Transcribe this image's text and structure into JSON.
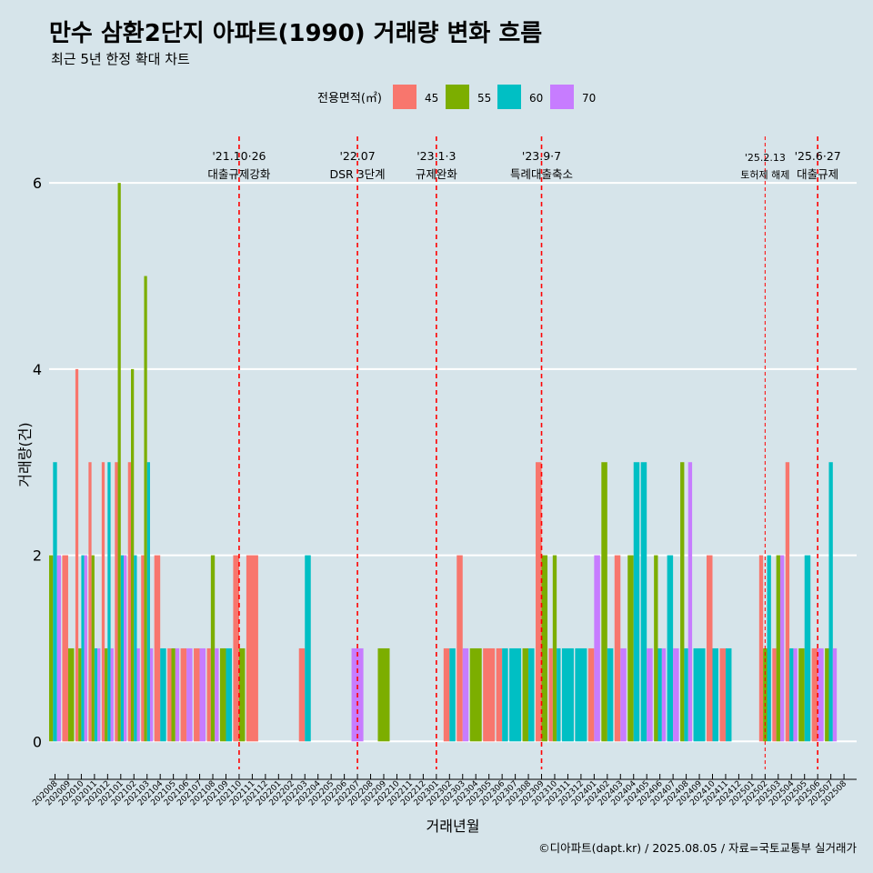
{
  "chart_data": {
    "type": "bar",
    "title": "만수 삼환2단지 아파트(1990) 거래량 변화 흐름",
    "subtitle": "최근 5년 한정 확대 차트",
    "xlabel": "거래년월",
    "ylabel": "거래량(건)",
    "caption": "©디아파트(dapt.kr) / 2025.08.05 / 자료=국토교통부 실거래가",
    "legend_title": "전용면적(㎡)",
    "legend_position": "top",
    "ylim": [
      -0.3,
      6.5
    ],
    "yticks": [
      0,
      2,
      4,
      6
    ],
    "groups": [
      "45",
      "55",
      "60",
      "70"
    ],
    "colors": {
      "45": "#f8766d",
      "55": "#7cae00",
      "60": "#00bfc4",
      "70": "#c77cff"
    },
    "months": [
      "202008",
      "202009",
      "202010",
      "202011",
      "202012",
      "202101",
      "202102",
      "202103",
      "202104",
      "202105",
      "202106",
      "202107",
      "202108",
      "202109",
      "202110",
      "202111",
      "202112",
      "202201",
      "202202",
      "202203",
      "202204",
      "202205",
      "202206",
      "202207",
      "202208",
      "202209",
      "202210",
      "202211",
      "202212",
      "202301",
      "202302",
      "202303",
      "202304",
      "202305",
      "202306",
      "202307",
      "202308",
      "202309",
      "202310",
      "202311",
      "202312",
      "202401",
      "202402",
      "202403",
      "202404",
      "202405",
      "202406",
      "202407",
      "202408",
      "202409",
      "202410",
      "202411",
      "202412",
      "202501",
      "202502",
      "202503",
      "202504",
      "202505",
      "202506",
      "202507",
      "202508"
    ],
    "points": [
      {
        "m": "202008",
        "g": "55",
        "v": 2
      },
      {
        "m": "202008",
        "g": "60",
        "v": 3
      },
      {
        "m": "202008",
        "g": "70",
        "v": 2
      },
      {
        "m": "202009",
        "g": "45",
        "v": 2
      },
      {
        "m": "202009",
        "g": "55",
        "v": 1
      },
      {
        "m": "202010",
        "g": "45",
        "v": 4
      },
      {
        "m": "202010",
        "g": "55",
        "v": 1
      },
      {
        "m": "202010",
        "g": "60",
        "v": 2
      },
      {
        "m": "202010",
        "g": "70",
        "v": 2
      },
      {
        "m": "202011",
        "g": "45",
        "v": 3
      },
      {
        "m": "202011",
        "g": "55",
        "v": 2
      },
      {
        "m": "202011",
        "g": "60",
        "v": 1
      },
      {
        "m": "202011",
        "g": "70",
        "v": 1
      },
      {
        "m": "202012",
        "g": "45",
        "v": 3
      },
      {
        "m": "202012",
        "g": "55",
        "v": 1
      },
      {
        "m": "202012",
        "g": "60",
        "v": 3
      },
      {
        "m": "202012",
        "g": "70",
        "v": 1
      },
      {
        "m": "202101",
        "g": "45",
        "v": 3
      },
      {
        "m": "202101",
        "g": "55",
        "v": 6
      },
      {
        "m": "202101",
        "g": "60",
        "v": 2
      },
      {
        "m": "202101",
        "g": "70",
        "v": 2
      },
      {
        "m": "202102",
        "g": "45",
        "v": 3
      },
      {
        "m": "202102",
        "g": "55",
        "v": 4
      },
      {
        "m": "202102",
        "g": "60",
        "v": 2
      },
      {
        "m": "202102",
        "g": "70",
        "v": 1
      },
      {
        "m": "202103",
        "g": "45",
        "v": 2
      },
      {
        "m": "202103",
        "g": "55",
        "v": 5
      },
      {
        "m": "202103",
        "g": "60",
        "v": 3
      },
      {
        "m": "202103",
        "g": "70",
        "v": 1
      },
      {
        "m": "202104",
        "g": "45",
        "v": 2
      },
      {
        "m": "202104",
        "g": "60",
        "v": 1
      },
      {
        "m": "202105",
        "g": "45",
        "v": 1
      },
      {
        "m": "202105",
        "g": "55",
        "v": 1
      },
      {
        "m": "202105",
        "g": "70",
        "v": 1
      },
      {
        "m": "202106",
        "g": "45",
        "v": 1
      },
      {
        "m": "202106",
        "g": "70",
        "v": 1
      },
      {
        "m": "202107",
        "g": "45",
        "v": 1
      },
      {
        "m": "202107",
        "g": "70",
        "v": 1
      },
      {
        "m": "202108",
        "g": "45",
        "v": 1
      },
      {
        "m": "202108",
        "g": "55",
        "v": 2
      },
      {
        "m": "202108",
        "g": "70",
        "v": 1
      },
      {
        "m": "202109",
        "g": "55",
        "v": 1
      },
      {
        "m": "202109",
        "g": "60",
        "v": 1
      },
      {
        "m": "202110",
        "g": "45",
        "v": 2
      },
      {
        "m": "202110",
        "g": "55",
        "v": 1
      },
      {
        "m": "202111",
        "g": "45",
        "v": 2
      },
      {
        "m": "202203",
        "g": "45",
        "v": 1
      },
      {
        "m": "202203",
        "g": "60",
        "v": 2
      },
      {
        "m": "202207",
        "g": "70",
        "v": 1
      },
      {
        "m": "202209",
        "g": "55",
        "v": 1
      },
      {
        "m": "202302",
        "g": "45",
        "v": 1
      },
      {
        "m": "202302",
        "g": "60",
        "v": 1
      },
      {
        "m": "202303",
        "g": "45",
        "v": 2
      },
      {
        "m": "202303",
        "g": "70",
        "v": 1
      },
      {
        "m": "202304",
        "g": "55",
        "v": 1
      },
      {
        "m": "202305",
        "g": "45",
        "v": 1
      },
      {
        "m": "202306",
        "g": "45",
        "v": 1
      },
      {
        "m": "202306",
        "g": "60",
        "v": 1
      },
      {
        "m": "202307",
        "g": "60",
        "v": 1
      },
      {
        "m": "202308",
        "g": "55",
        "v": 1
      },
      {
        "m": "202308",
        "g": "60",
        "v": 1
      },
      {
        "m": "202309",
        "g": "45",
        "v": 3
      },
      {
        "m": "202309",
        "g": "55",
        "v": 2
      },
      {
        "m": "202310",
        "g": "45",
        "v": 1
      },
      {
        "m": "202310",
        "g": "55",
        "v": 2
      },
      {
        "m": "202310",
        "g": "60",
        "v": 1
      },
      {
        "m": "202311",
        "g": "60",
        "v": 1
      },
      {
        "m": "202312",
        "g": "60",
        "v": 1
      },
      {
        "m": "202401",
        "g": "45",
        "v": 1
      },
      {
        "m": "202401",
        "g": "70",
        "v": 2
      },
      {
        "m": "202402",
        "g": "55",
        "v": 3
      },
      {
        "m": "202402",
        "g": "60",
        "v": 1
      },
      {
        "m": "202403",
        "g": "45",
        "v": 2
      },
      {
        "m": "202403",
        "g": "70",
        "v": 1
      },
      {
        "m": "202404",
        "g": "55",
        "v": 2
      },
      {
        "m": "202404",
        "g": "60",
        "v": 3
      },
      {
        "m": "202405",
        "g": "60",
        "v": 3
      },
      {
        "m": "202405",
        "g": "70",
        "v": 1
      },
      {
        "m": "202406",
        "g": "55",
        "v": 2
      },
      {
        "m": "202406",
        "g": "60",
        "v": 1
      },
      {
        "m": "202406",
        "g": "70",
        "v": 1
      },
      {
        "m": "202407",
        "g": "60",
        "v": 2
      },
      {
        "m": "202407",
        "g": "70",
        "v": 1
      },
      {
        "m": "202408",
        "g": "55",
        "v": 3
      },
      {
        "m": "202408",
        "g": "60",
        "v": 1
      },
      {
        "m": "202408",
        "g": "70",
        "v": 3
      },
      {
        "m": "202409",
        "g": "60",
        "v": 1
      },
      {
        "m": "202410",
        "g": "45",
        "v": 2
      },
      {
        "m": "202410",
        "g": "60",
        "v": 1
      },
      {
        "m": "202411",
        "g": "45",
        "v": 1
      },
      {
        "m": "202411",
        "g": "60",
        "v": 1
      },
      {
        "m": "202502",
        "g": "45",
        "v": 2
      },
      {
        "m": "202502",
        "g": "55",
        "v": 1
      },
      {
        "m": "202502",
        "g": "60",
        "v": 2
      },
      {
        "m": "202503",
        "g": "45",
        "v": 1
      },
      {
        "m": "202503",
        "g": "55",
        "v": 2
      },
      {
        "m": "202503",
        "g": "70",
        "v": 2
      },
      {
        "m": "202504",
        "g": "45",
        "v": 3
      },
      {
        "m": "202504",
        "g": "60",
        "v": 1
      },
      {
        "m": "202504",
        "g": "70",
        "v": 1
      },
      {
        "m": "202505",
        "g": "55",
        "v": 1
      },
      {
        "m": "202505",
        "g": "60",
        "v": 2
      },
      {
        "m": "202506",
        "g": "45",
        "v": 1
      },
      {
        "m": "202506",
        "g": "70",
        "v": 1
      },
      {
        "m": "202507",
        "g": "55",
        "v": 1
      },
      {
        "m": "202507",
        "g": "60",
        "v": 3
      },
      {
        "m": "202507",
        "g": "70",
        "v": 1
      }
    ],
    "events": [
      {
        "month": "202110",
        "line1": "'21.10·26",
        "line2": "대출규제강화",
        "style": "bold"
      },
      {
        "month": "202207",
        "line1": "'22.07",
        "line2": "DSR 3단계",
        "style": "bold"
      },
      {
        "month": "202301",
        "line1": "'23.1·3",
        "line2": "규제완화",
        "style": "bold"
      },
      {
        "month": "202309",
        "line1": "'23.9·7",
        "line2": "특례대출축소",
        "style": "bold"
      },
      {
        "month": "202502",
        "line1": "'25.2.13",
        "line2": "토허제 해제",
        "style": "thin"
      },
      {
        "month": "202506",
        "line1": "'25.6·27",
        "line2": "대출규제",
        "style": "bold"
      }
    ]
  }
}
